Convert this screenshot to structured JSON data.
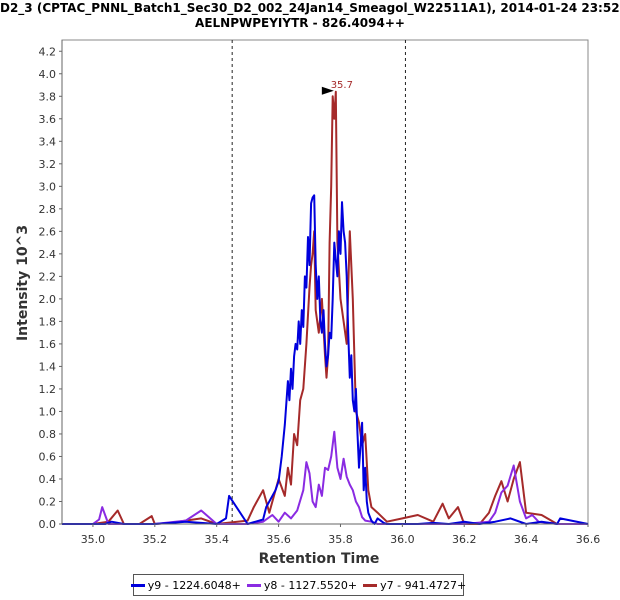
{
  "chart_data": {
    "type": "line",
    "title": "D2_3 (CPTAC_PNNL_Batch1_Sec30_D2_002_24Jan14_Smeagol_W22511A1), 2014-01-24 23:52",
    "subtitle": "AELNPWPEYIYTR - 826.4094++",
    "xlabel": "Retention Time",
    "ylabel": "Intensity 10^3",
    "xlim": [
      34.9,
      36.6
    ],
    "ylim": [
      0,
      4.3
    ],
    "xticks": [
      "35.0",
      "35.2",
      "35.4",
      "35.6",
      "35.8",
      "36.0",
      "36.2",
      "36.4",
      "36.6"
    ],
    "yticks": [
      "0.0",
      "0.2",
      "0.4",
      "0.6",
      "0.8",
      "1.0",
      "1.2",
      "1.4",
      "1.6",
      "1.8",
      "2.0",
      "2.2",
      "2.4",
      "2.6",
      "2.8",
      "3.0",
      "3.2",
      "3.4",
      "3.6",
      "3.8",
      "4.0",
      "4.2"
    ],
    "xtick_values": [
      35.0,
      35.2,
      35.4,
      35.6,
      35.8,
      36.0,
      36.2,
      36.4,
      36.6
    ],
    "ytick_values": [
      0,
      0.2,
      0.4,
      0.6,
      0.8,
      1.0,
      1.2,
      1.4,
      1.6,
      1.8,
      2.0,
      2.2,
      2.4,
      2.6,
      2.8,
      3.0,
      3.2,
      3.4,
      3.6,
      3.8,
      4.0,
      4.2
    ],
    "boundaries": [
      35.45,
      36.01
    ],
    "peak_annotation": {
      "label": "35.7",
      "x": 35.785,
      "y": 3.84
    },
    "series": [
      {
        "name": "y9 - 1224.6048+",
        "color": "#0000dd",
        "x": [
          34.88,
          35.0,
          35.04,
          35.06,
          35.1,
          35.2,
          35.3,
          35.4,
          35.43,
          35.44,
          35.5,
          35.55,
          35.56,
          35.58,
          35.59,
          35.6,
          35.61,
          35.62,
          35.63,
          35.635,
          35.64,
          35.645,
          35.65,
          35.655,
          35.66,
          35.665,
          35.67,
          35.675,
          35.68,
          35.685,
          35.69,
          35.695,
          35.7,
          35.705,
          35.71,
          35.715,
          35.72,
          35.725,
          35.73,
          35.735,
          35.74,
          35.745,
          35.75,
          35.755,
          35.76,
          35.765,
          35.77,
          35.775,
          35.78,
          35.785,
          35.79,
          35.795,
          35.8,
          35.805,
          35.81,
          35.815,
          35.82,
          35.825,
          35.83,
          35.835,
          35.84,
          35.845,
          35.85,
          35.855,
          35.86,
          35.865,
          35.87,
          35.875,
          35.88,
          35.885,
          35.89,
          35.9,
          35.91,
          35.92,
          35.94,
          35.95,
          36.0,
          36.05,
          36.1,
          36.15,
          36.2,
          36.25,
          36.3,
          36.35,
          36.4,
          36.45,
          36.5,
          36.51,
          36.6
        ],
        "y": [
          0,
          0,
          0,
          0.02,
          0,
          0,
          0.02,
          0,
          0.05,
          0.25,
          0,
          0.04,
          0.15,
          0.25,
          0.3,
          0.38,
          0.6,
          0.88,
          1.27,
          1.1,
          1.38,
          1.2,
          1.49,
          1.6,
          1.55,
          1.8,
          1.6,
          1.9,
          1.75,
          2.2,
          2.1,
          2.55,
          2.3,
          2.85,
          2.9,
          2.92,
          2.3,
          2.0,
          2.2,
          1.8,
          1.7,
          1.9,
          1.6,
          1.4,
          1.5,
          1.7,
          1.65,
          2.0,
          2.5,
          2.35,
          2.2,
          2.6,
          2.4,
          2.86,
          2.6,
          2.5,
          2.2,
          1.7,
          1.3,
          1.5,
          1.1,
          1.0,
          1.2,
          0.8,
          0.5,
          0.7,
          0.9,
          0.3,
          0.5,
          0.2,
          0.1,
          0.03,
          0,
          0.05,
          0.01,
          0,
          0,
          0,
          0.01,
          0,
          0.02,
          0,
          0.02,
          0.05,
          0,
          0.02,
          0,
          0.05,
          0
        ]
      },
      {
        "name": "y8 - 1127.5520+",
        "color": "#8a2be2",
        "x": [
          34.88,
          35.0,
          35.02,
          35.03,
          35.05,
          35.1,
          35.2,
          35.3,
          35.35,
          35.4,
          35.5,
          35.55,
          35.58,
          35.6,
          35.62,
          35.64,
          35.66,
          35.68,
          35.69,
          35.7,
          35.71,
          35.72,
          35.73,
          35.74,
          35.75,
          35.76,
          35.77,
          35.78,
          35.79,
          35.8,
          35.81,
          35.82,
          35.83,
          35.84,
          35.85,
          35.86,
          35.87,
          35.88,
          35.9,
          35.92,
          35.95,
          36.0,
          36.1,
          36.2,
          36.28,
          36.3,
          36.32,
          36.34,
          36.36,
          36.38,
          36.4,
          36.42,
          36.44,
          36.5,
          36.6
        ],
        "y": [
          0,
          0,
          0.04,
          0.15,
          0,
          0,
          0,
          0.03,
          0.12,
          0,
          0,
          0.02,
          0.08,
          0.02,
          0.1,
          0.05,
          0.12,
          0.3,
          0.55,
          0.45,
          0.2,
          0.15,
          0.35,
          0.25,
          0.5,
          0.48,
          0.6,
          0.82,
          0.5,
          0.4,
          0.58,
          0.42,
          0.35,
          0.3,
          0.2,
          0.15,
          0.06,
          0.03,
          0.02,
          0,
          0,
          0,
          0,
          0,
          0.02,
          0.1,
          0.28,
          0.34,
          0.52,
          0.2,
          0.05,
          0.08,
          0.02,
          0,
          0
        ]
      },
      {
        "name": "y7 - 941.4727+",
        "color": "#a52a2a",
        "x": [
          34.88,
          35.0,
          35.05,
          35.08,
          35.1,
          35.15,
          35.19,
          35.2,
          35.25,
          35.3,
          35.35,
          35.4,
          35.5,
          35.52,
          35.55,
          35.57,
          35.6,
          35.62,
          35.63,
          35.64,
          35.65,
          35.66,
          35.67,
          35.68,
          35.69,
          35.7,
          35.705,
          35.71,
          35.715,
          35.72,
          35.73,
          35.74,
          35.75,
          35.755,
          35.76,
          35.765,
          35.77,
          35.775,
          35.78,
          35.785,
          35.79,
          35.8,
          35.81,
          35.82,
          35.83,
          35.84,
          35.85,
          35.86,
          35.87,
          35.88,
          35.89,
          35.9,
          35.92,
          35.95,
          36.0,
          36.05,
          36.1,
          36.13,
          36.15,
          36.18,
          36.2,
          36.25,
          36.28,
          36.3,
          36.32,
          36.34,
          36.36,
          36.38,
          36.4,
          36.45,
          36.5,
          36.6
        ],
        "y": [
          0,
          0,
          0.02,
          0.12,
          0,
          0,
          0.07,
          0,
          0.01,
          0.03,
          0.05,
          0,
          0.03,
          0.15,
          0.3,
          0.1,
          0.4,
          0.25,
          0.5,
          0.35,
          0.8,
          0.7,
          1.1,
          1.2,
          1.6,
          2.1,
          2.3,
          2.4,
          2.6,
          1.9,
          1.7,
          2.0,
          1.5,
          1.3,
          1.5,
          2.5,
          3.0,
          3.8,
          3.6,
          3.84,
          2.5,
          2.0,
          1.8,
          1.6,
          2.6,
          2.0,
          1.0,
          0.9,
          0.7,
          0.8,
          0.3,
          0.15,
          0.1,
          0.02,
          0.05,
          0.08,
          0.02,
          0.18,
          0.05,
          0.15,
          0,
          0,
          0.1,
          0.25,
          0.38,
          0.2,
          0.4,
          0.55,
          0.1,
          0.08,
          0,
          0
        ]
      }
    ]
  }
}
